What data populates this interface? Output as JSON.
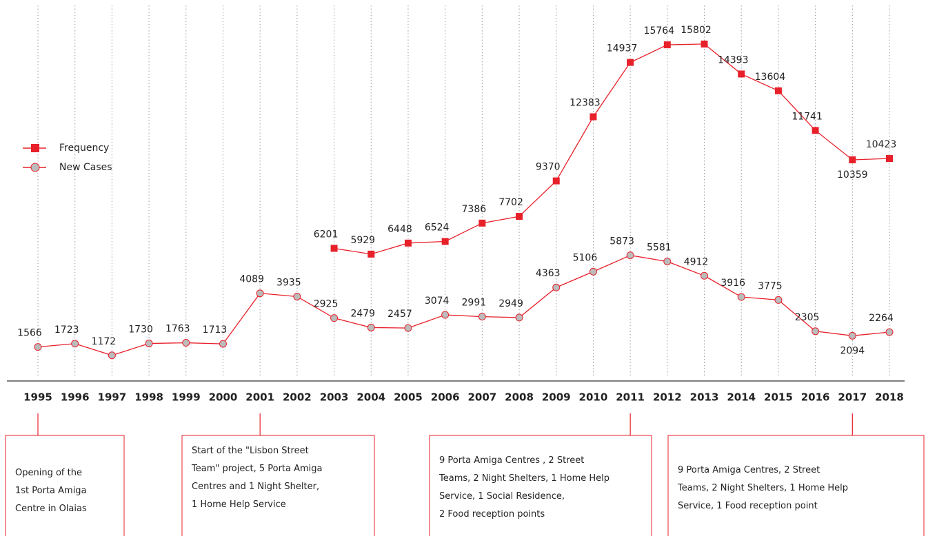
{
  "chart_data": {
    "type": "line",
    "categories": [
      "1995",
      "1996",
      "1997",
      "1998",
      "1999",
      "2000",
      "2001",
      "2002",
      "2003",
      "2004",
      "2005",
      "2006",
      "2007",
      "2008",
      "2009",
      "2010",
      "2011",
      "2012",
      "2013",
      "2014",
      "2015",
      "2016",
      "2017",
      "2018"
    ],
    "series": [
      {
        "name": "Frequency",
        "color": "#e8202a",
        "marker": "square",
        "values": [
          null,
          null,
          null,
          null,
          null,
          null,
          null,
          null,
          6201,
          5929,
          6448,
          6524,
          7386,
          7702,
          9370,
          12383,
          14937,
          15764,
          15802,
          14393,
          13604,
          11741,
          10359,
          10423
        ]
      },
      {
        "name": "New Cases",
        "color": "#e8202a",
        "marker": "circle",
        "values": [
          1566,
          1723,
          1172,
          1730,
          1763,
          1713,
          4089,
          3935,
          2925,
          2479,
          2457,
          3074,
          2991,
          2949,
          4363,
          5106,
          5873,
          5581,
          4912,
          3916,
          3775,
          2305,
          2094,
          2264
        ]
      }
    ],
    "ylim": [
      0,
      18000
    ],
    "grid": true,
    "legend": "left",
    "annotations": [
      {
        "category": "1995",
        "lines": [
          "Opening of the",
          "1st Porta Amiga",
          "Centre in Olaias"
        ]
      },
      {
        "category": "2001",
        "lines": [
          "Start of the \"Lisbon Street",
          "Team\" project, 5 Porta Amiga",
          "Centres and 1 Night Shelter,",
          "1 Home Help Service"
        ]
      },
      {
        "category": "2011",
        "lines": [
          "9 Porta Amiga Centres , 2 Street",
          "Teams, 2 Night Shelters, 1 Home Help",
          "Service, 1 Social Residence,",
          "2 Food reception points"
        ]
      },
      {
        "category": "2017",
        "lines": [
          "9 Porta Amiga Centres, 2 Street",
          "Teams, 2 Night Shelters, 1 Home Help",
          "Service, 1 Food reception point"
        ]
      }
    ]
  }
}
